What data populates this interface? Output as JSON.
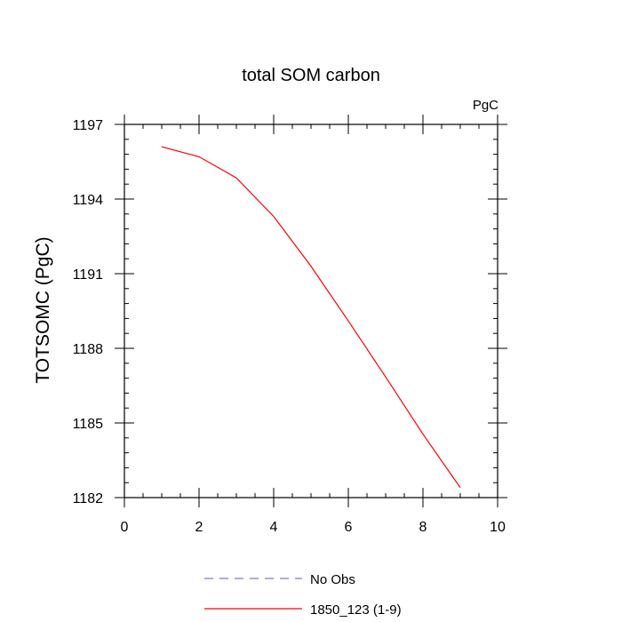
{
  "chart_data": {
    "type": "line",
    "title": "total SOM carbon",
    "units_label": "PgC",
    "xlabel": "",
    "ylabel": "TOTSOMC  (PgC)",
    "xlim": [
      0,
      10
    ],
    "ylim": [
      1182,
      1197
    ],
    "x_ticks": [
      0,
      2,
      4,
      6,
      8,
      10
    ],
    "y_ticks": [
      1182,
      1185,
      1188,
      1191,
      1194,
      1197
    ],
    "grid": false,
    "legend_position": "bottom",
    "series": [
      {
        "name": "No Obs",
        "color": "#7b7bd9",
        "dash": true,
        "x": [],
        "values": []
      },
      {
        "name": "1850_123 (1-9)",
        "color": "#ff0000",
        "dash": false,
        "x": [
          1,
          2,
          3,
          4,
          5,
          6,
          7,
          8,
          9
        ],
        "values": [
          1196.1,
          1195.7,
          1194.85,
          1193.3,
          1191.3,
          1189.1,
          1186.85,
          1184.55,
          1182.4
        ]
      }
    ]
  }
}
